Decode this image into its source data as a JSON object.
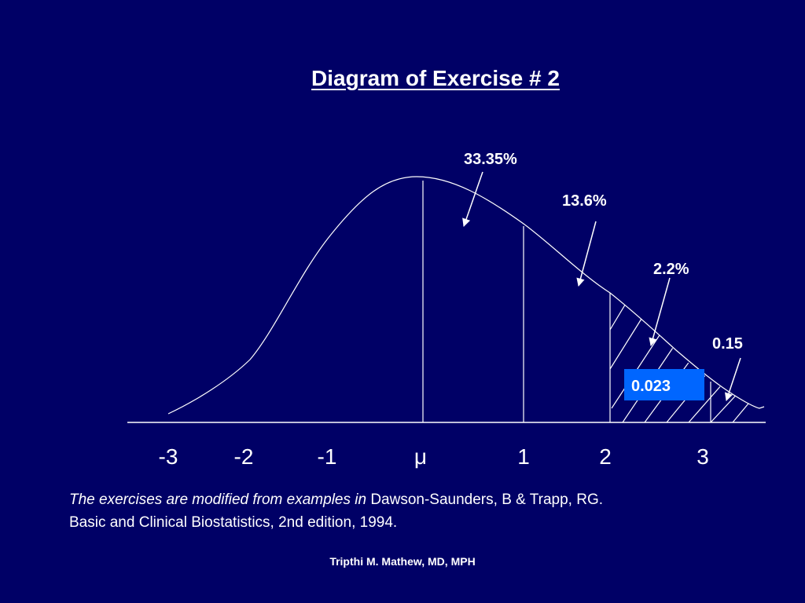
{
  "title": "Diagram of Exercise # 2",
  "axis_ticks": [
    "-3",
    "-2",
    "-1",
    "μ",
    "1",
    "2",
    "3"
  ],
  "annotations": {
    "a1": "33.35%",
    "a2": "13.6%",
    "a3": "2.2%",
    "a4": "0.15"
  },
  "highlight_box": {
    "label": "0.023",
    "color": "#0066ff"
  },
  "citation": {
    "italic": "The exercises are modified from examples in",
    "rest": " Dawson-Saunders, B & Trapp, RG. Basic and Clinical Biostatistics, 2nd edition, 1994."
  },
  "author": "Tripthi M. Mathew, MD, MPH",
  "colors": {
    "background": "#000066",
    "lines": "#ffffff"
  }
}
